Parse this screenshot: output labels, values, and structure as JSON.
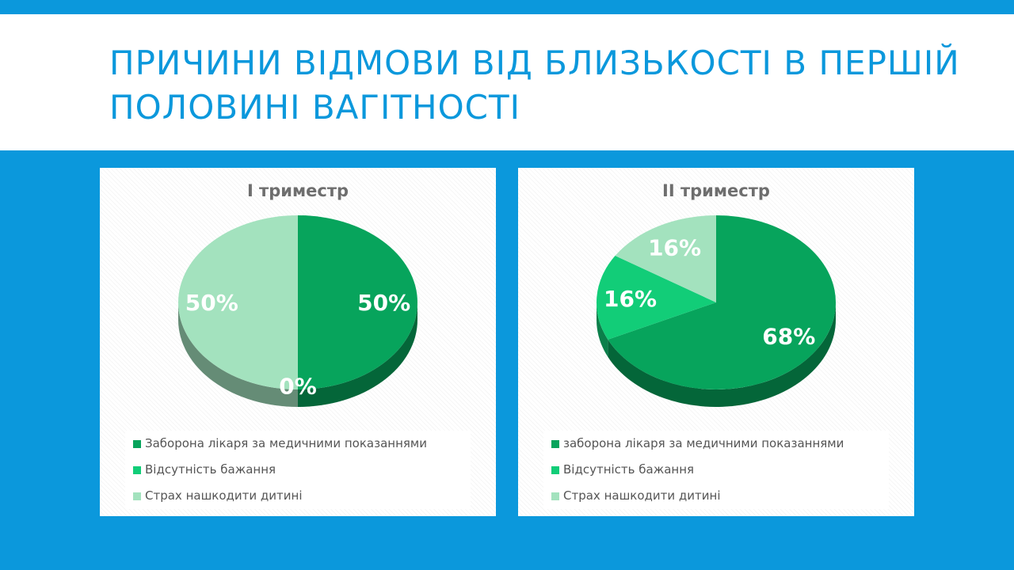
{
  "slide": {
    "title": "Причини відмови від близькості в першій половині вагітності"
  },
  "colors": {
    "background": "#0b98dc",
    "title": "#0b98dc"
  },
  "chart_data": [
    {
      "type": "pie",
      "title": "I триместр",
      "categories": [
        "Заборона лікаря за медичними показаннями",
        "Відсутність бажання",
        "Страх нашкодити дитині"
      ],
      "values": [
        50,
        0,
        50
      ],
      "data_labels": [
        "50%",
        "0%",
        "50%"
      ],
      "colors": [
        "#07a45c",
        "#12cd78",
        "#a3e2be"
      ],
      "legend_position": "bottom",
      "style": "3d"
    },
    {
      "type": "pie",
      "title": "II триместр",
      "categories": [
        "заборона лікаря за медичними показаннями",
        "Відсутність бажання",
        "Страх нашкодити дитині"
      ],
      "values": [
        68,
        16,
        16
      ],
      "data_labels": [
        "68%",
        "16%",
        "16%"
      ],
      "colors": [
        "#07a45c",
        "#12cd78",
        "#a3e2be"
      ],
      "legend_position": "bottom",
      "style": "3d"
    }
  ]
}
